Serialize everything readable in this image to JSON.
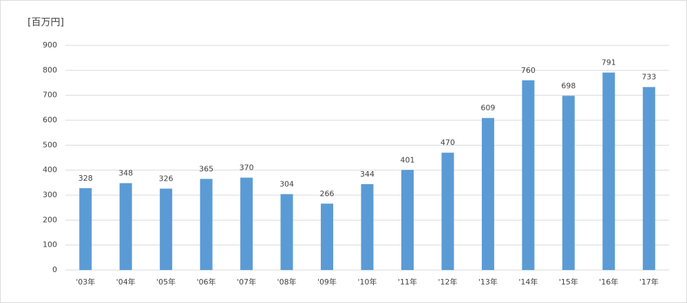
{
  "chart_data": {
    "type": "bar",
    "y_label": "[百万円]",
    "categories": [
      "'03年",
      "'04年",
      "'05年",
      "'06年",
      "'07年",
      "'08年",
      "'09年",
      "'10年",
      "'11年",
      "'12年",
      "'13年",
      "'14年",
      "'15年",
      "'16年",
      "'17年"
    ],
    "values": [
      328,
      348,
      326,
      365,
      370,
      304,
      266,
      344,
      401,
      470,
      609,
      760,
      698,
      791,
      733
    ],
    "color": "#5b9bd5",
    "ylim": [
      0,
      900
    ],
    "yticks": [
      0,
      100,
      200,
      300,
      400,
      500,
      600,
      700,
      800,
      900
    ],
    "grid": true
  }
}
